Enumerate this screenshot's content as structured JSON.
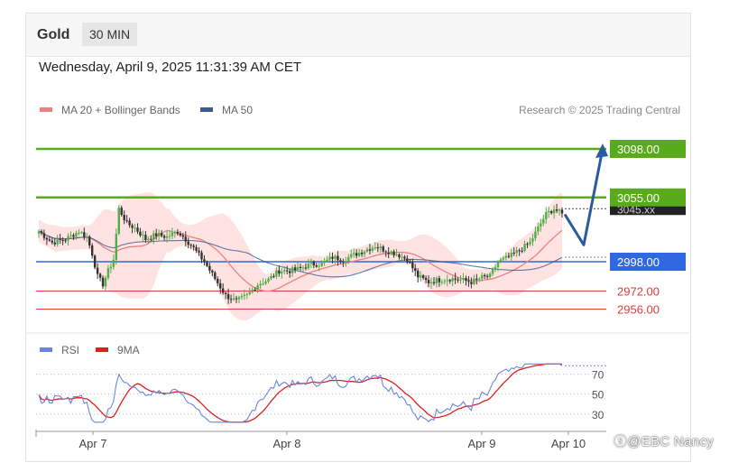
{
  "header": {
    "instrument": "Gold",
    "timeframe": "30 MIN"
  },
  "datetime": "Wednesday, April 9, 2025 11:31:39 AM CET",
  "legend": {
    "ma20_label": "MA 20 + Bollinger Bands",
    "ma50_label": "MA 50",
    "research": "Research © 2025 Trading Central"
  },
  "colors": {
    "ma20": "#f08080",
    "ma50": "#3a5a90",
    "band_fill": "#ffd9d9",
    "resistance": "#5aaa1e",
    "pivot": "#2f68e0",
    "support": "#e23b3b",
    "candle_up": "#4fae45",
    "candle_down": "#333333",
    "arrow": "#2a5aa0",
    "rsi": "#6b86e0",
    "rsi_ma": "#e02020"
  },
  "chart_data": [
    {
      "type": "candlestick",
      "title": "Gold 30 MIN",
      "x_labels": [
        "Apr 7",
        "Apr 8",
        "Apr 9",
        "Apr 10"
      ],
      "ylim": [
        2938,
        3118
      ],
      "levels": [
        {
          "name": "resistance-2",
          "value": 3098.0,
          "label": "3098.00",
          "kind": "resistance"
        },
        {
          "name": "resistance-1",
          "value": 3055.0,
          "label": "3055.00",
          "kind": "resistance"
        },
        {
          "name": "pivot",
          "value": 2998.0,
          "label": "2998.00",
          "kind": "pivot"
        },
        {
          "name": "support-1",
          "value": 2972.0,
          "label": "2972.00",
          "kind": "support"
        },
        {
          "name": "support-2",
          "value": 2956.0,
          "label": "2956.00",
          "kind": "support"
        }
      ],
      "last_price_label": "3045.xx",
      "forecast_path": [
        3040,
        3013,
        3098
      ]
    },
    {
      "type": "line",
      "title": "RSI",
      "series": [
        {
          "name": "RSI",
          "key": "rsi"
        },
        {
          "name": "9MA",
          "key": "rsi_ma"
        }
      ],
      "yticks": [
        70,
        50,
        30
      ],
      "ylim": [
        20,
        83
      ]
    }
  ]
}
